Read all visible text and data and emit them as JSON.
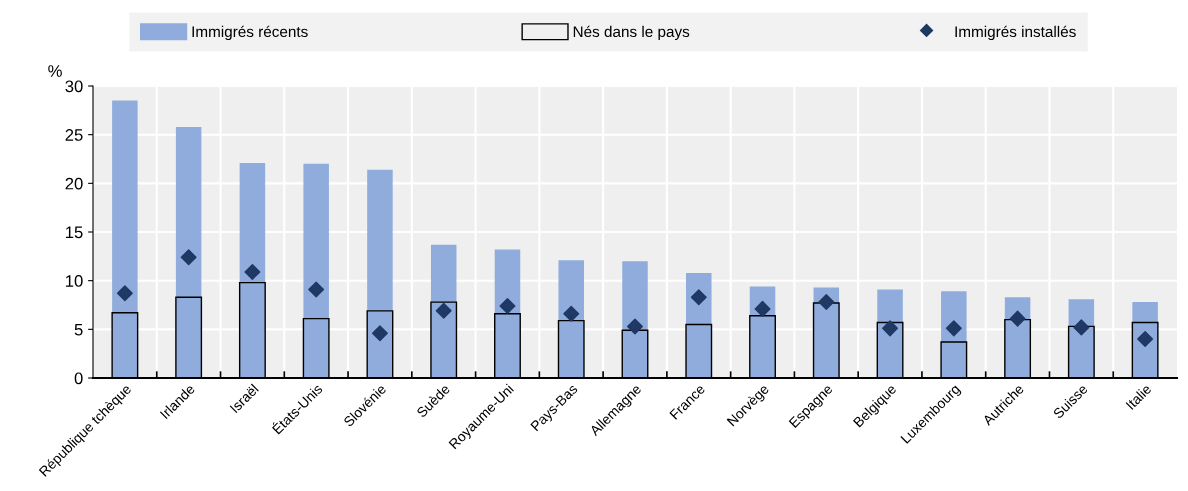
{
  "chart_data": {
    "type": "bar",
    "ylabel": "%",
    "categories": [
      "République tchèque",
      "Irlande",
      "Israël",
      "États-Unis",
      "Slovénie",
      "Suède",
      "Royaume-Uni",
      "Pays-Bas",
      "Allemagne",
      "France",
      "Norvège",
      "Espagne",
      "Belgique",
      "Luxembourg",
      "Autriche",
      "Suisse",
      "Italie"
    ],
    "series": [
      {
        "name": "Immigrés récents",
        "color": "#8facdc",
        "values": [
          28.5,
          25.8,
          22.1,
          22.0,
          21.4,
          13.7,
          13.2,
          12.1,
          12.0,
          10.8,
          9.4,
          9.3,
          9.1,
          8.9,
          8.3,
          8.1,
          7.8
        ]
      },
      {
        "name": "Nés dans le pays",
        "color": "#000000",
        "values": [
          6.7,
          8.3,
          9.8,
          6.1,
          6.9,
          7.8,
          6.6,
          5.9,
          4.9,
          5.5,
          6.4,
          7.7,
          5.7,
          3.7,
          6.0,
          5.3,
          5.7
        ]
      },
      {
        "name": "Immigrés installés",
        "type": "scatter",
        "color": "#1f3864",
        "values": [
          8.7,
          12.4,
          10.9,
          9.1,
          4.6,
          6.9,
          7.4,
          6.6,
          5.3,
          8.3,
          7.1,
          7.8,
          5.1,
          5.1,
          6.1,
          5.2,
          4.0
        ]
      }
    ],
    "ylim": [
      0,
      30
    ],
    "yticks": [
      0,
      5,
      10,
      15,
      20,
      25,
      30
    ],
    "grid": true,
    "legend": "top",
    "marker": "diamond"
  }
}
